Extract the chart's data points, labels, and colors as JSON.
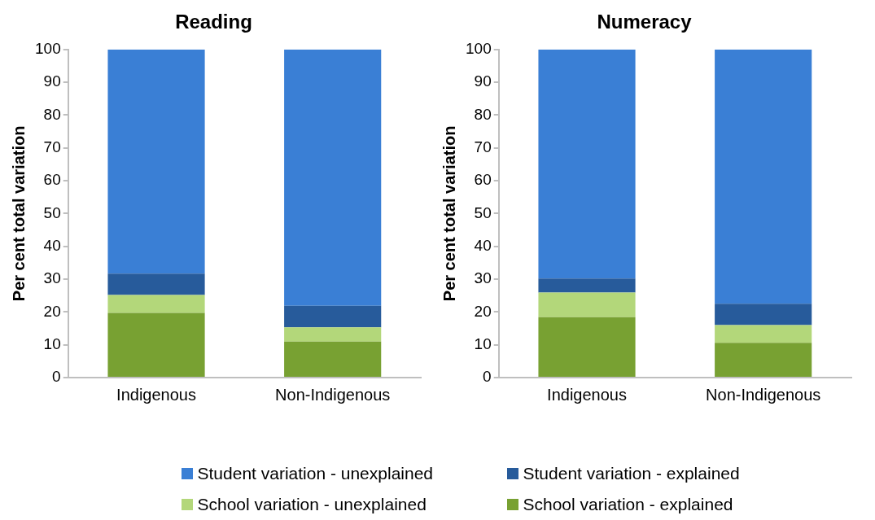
{
  "chart_data": [
    {
      "type": "bar",
      "title": "Reading",
      "ylabel": "Per cent total variation",
      "categories": [
        "Indigenous",
        "Non-Indigenous"
      ],
      "stacked": true,
      "ylim": [
        0,
        100
      ],
      "yticks": [
        0,
        10,
        20,
        30,
        40,
        50,
        60,
        70,
        80,
        90,
        100
      ],
      "grid": false,
      "legend": "bottom",
      "series": [
        {
          "name": "School variation - explained",
          "color": "#78a132",
          "values": [
            19.7,
            11.0
          ]
        },
        {
          "name": "School variation - unexplained",
          "color": "#b3d77a",
          "values": [
            5.5,
            4.3
          ]
        },
        {
          "name": "Student variation - explained",
          "color": "#275b9b",
          "values": [
            6.5,
            6.6
          ]
        },
        {
          "name": "Student variation - unexplained",
          "color": "#3a7fd5",
          "values": [
            68.3,
            78.1
          ]
        }
      ]
    },
    {
      "type": "bar",
      "title": "Numeracy",
      "ylabel": "Per cent total variation",
      "categories": [
        "Indigenous",
        "Non-Indigenous"
      ],
      "stacked": true,
      "ylim": [
        0,
        100
      ],
      "yticks": [
        0,
        10,
        20,
        30,
        40,
        50,
        60,
        70,
        80,
        90,
        100
      ],
      "grid": false,
      "series": [
        {
          "color": "#78a132",
          "values": [
            18.4,
            10.6
          ]
        },
        {
          "color": "#b3d77a",
          "values": [
            7.5,
            5.4
          ]
        },
        {
          "color": "#275b9b",
          "values": [
            4.3,
            6.5
          ]
        },
        {
          "color": "#3a7fd5",
          "values": [
            69.8,
            77.5
          ]
        }
      ]
    }
  ]
}
